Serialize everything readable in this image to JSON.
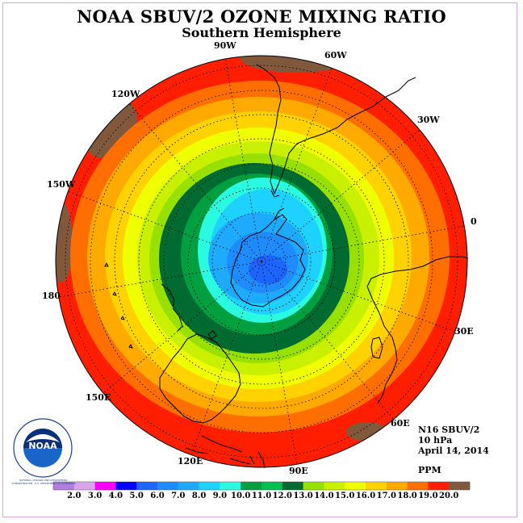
{
  "title": "NOAA SBUV/2 OZONE MIXING RATIO",
  "subtitle": "Southern Hemisphere",
  "longitudes": [
    "90W",
    "60W",
    "120W",
    "30W",
    "150W",
    "0",
    "180",
    "30E",
    "150E",
    "60E",
    "120E",
    "90E"
  ],
  "info": {
    "satellite": "N16 SBUV/2",
    "level": "10 hPa",
    "date": "April 14, 2014",
    "unit": "PPM"
  },
  "logo": {
    "text": "NOAA",
    "ring_text": "NATIONAL OCEANIC AND ATMOSPHERIC ADMINISTRATION · U.S. DEPARTMENT OF COMMERCE"
  },
  "colorbar": {
    "labels": [
      "2.0",
      "3.0",
      "4.0",
      "5.0",
      "6.0",
      "7.0",
      "8.0",
      "9.0",
      "10.0",
      "11.0",
      "12.0",
      "13.0",
      "14.0",
      "15.0",
      "16.0",
      "17.0",
      "18.0",
      "19.0",
      "20.0"
    ],
    "colors": [
      "#b07fe0",
      "#d9a6ee",
      "#ff00ff",
      "#0000ff",
      "#1e64ff",
      "#1e8cff",
      "#1eaaff",
      "#1ed2ff",
      "#2afae0",
      "#00a040",
      "#00c050",
      "#006b30",
      "#98e000",
      "#c8f000",
      "#f0ff00",
      "#ffd200",
      "#ffaa00",
      "#ff6e00",
      "#ff1e00",
      "#80583c"
    ]
  }
}
